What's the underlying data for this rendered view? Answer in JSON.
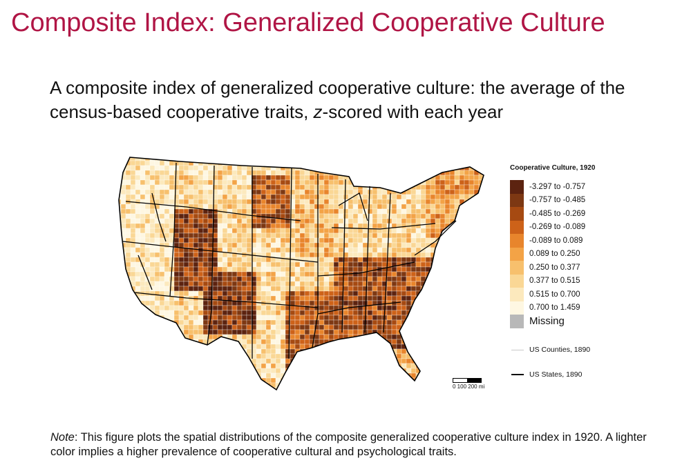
{
  "slide": {
    "title": "Composite Index: Generalized Cooperative Culture",
    "subtitle_part1": "A composite index of generalized cooperative culture: the average of the census-based cooperative traits, ",
    "subtitle_italic": "z",
    "subtitle_part2": "-scored with each year"
  },
  "map": {
    "year": 1920,
    "legend_title": "Cooperative Culture, 1920",
    "classes": [
      {
        "label": "-3.297 to -0.757",
        "color": "#5c2310"
      },
      {
        "label": "-0.757 to -0.485",
        "color": "#7d3813"
      },
      {
        "label": "-0.485 to -0.269",
        "color": "#a64a12"
      },
      {
        "label": "-0.269 to -0.089",
        "color": "#cd6219"
      },
      {
        "label": "-0.089 to 0.089",
        "color": "#e8852c"
      },
      {
        "label": "0.089 to 0.250",
        "color": "#f3a346"
      },
      {
        "label": "0.250 to 0.377",
        "color": "#f7c06d"
      },
      {
        "label": "0.377 to 0.515",
        "color": "#fad795"
      },
      {
        "label": "0.515 to 0.700",
        "color": "#fce9bd"
      },
      {
        "label": "0.700 to 1.459",
        "color": "#fef7e2"
      }
    ],
    "missing": {
      "label": "Missing",
      "color": "#b8b8b8"
    },
    "counties_key": "US Counties, 1890",
    "states_key": "US States, 1890",
    "scale_label": "0   100 200 mi"
  },
  "note": {
    "label": "Note",
    "text": ": This figure plots the spatial distributions of the composite generalized cooperative culture index in 1920. A lighter color implies a higher prevalence of cooperative cultural and psychological traits."
  }
}
